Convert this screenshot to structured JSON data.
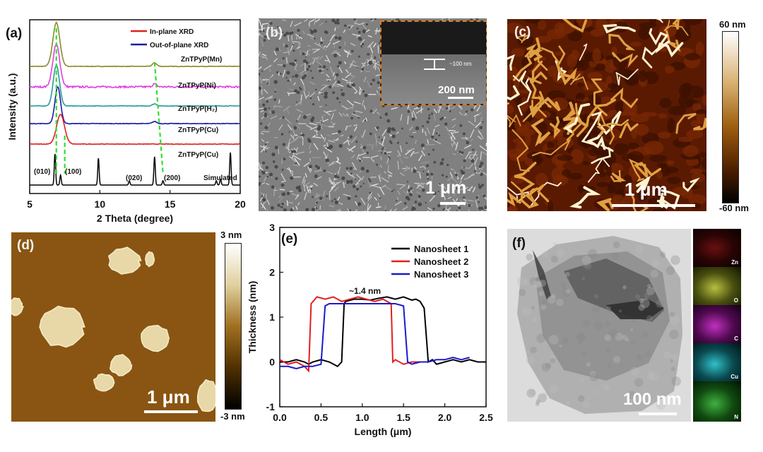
{
  "panels": {
    "a": {
      "label": "(a)",
      "ylabel": "Intensity (a.u.)",
      "xlabel": "2 Theta (degree)",
      "legend": [
        "In-plane XRD",
        "Out-of-plane XRD"
      ],
      "traces": [
        "ZnTPyP(Mn)",
        "ZnTPyP(Ni)",
        "ZnTPyP(H₂)",
        "ZnTPyP(Cu)",
        "ZnTPyP(Cu)",
        "Simulated"
      ],
      "peaks": [
        "(010)",
        "(100)",
        "(020)",
        "(200)"
      ],
      "xticks": [
        "5",
        "10",
        "15",
        "20"
      ]
    },
    "b": {
      "label": "(b)",
      "scale": "1 μm",
      "inset_scale": "200 nm",
      "inset_thickness": "~100 nm"
    },
    "c": {
      "label": "(c)",
      "scale": "1 μm",
      "cbar_max": "60 nm",
      "cbar_min": "-60 nm"
    },
    "d": {
      "label": "(d)",
      "scale": "1 μm",
      "cbar_max": "3 nm",
      "cbar_min": "-3 nm"
    },
    "e": {
      "label": "(e)",
      "ylabel": "Thickness (nm)",
      "xlabel": "Length (μm)",
      "annotation": "~1.4 nm",
      "xticks": [
        "0.0",
        "0.5",
        "1.0",
        "1.5",
        "2.0",
        "2.5"
      ],
      "yticks": [
        "-1",
        "0",
        "1",
        "2",
        "3"
      ]
    },
    "f": {
      "label": "(f)",
      "scale": "100 nm",
      "edx": [
        "Zn",
        "O",
        "C",
        "Cu",
        "N"
      ]
    }
  },
  "colors": {
    "mn": "#8a8a2a",
    "ni": "#e040e0",
    "h2": "#2a9a9a",
    "cu_out": "#1a1aa8",
    "cu_in": "#e02020",
    "sim": "#000000",
    "guide": "#33dd33",
    "ns1": "#000000",
    "ns2": "#e02020",
    "ns3": "#1a1acc"
  },
  "chart_data": [
    {
      "type": "line",
      "xlabel": "2 Theta (degree)",
      "ylabel": "Intensity (a.u.)",
      "xlim": [
        5,
        20
      ],
      "series": [
        {
          "name": "ZnTPyP(Mn)",
          "peaks_x": [
            6.9,
            13.9
          ]
        },
        {
          "name": "ZnTPyP(Ni)",
          "peaks_x": [
            6.9,
            13.9
          ]
        },
        {
          "name": "ZnTPyP(H₂)",
          "peaks_x": [
            6.9,
            13.9
          ]
        },
        {
          "name": "ZnTPyP(Cu)",
          "peaks_x": [
            6.9,
            13.9
          ]
        },
        {
          "name": "ZnTPyP(Cu)",
          "peaks_x": [
            7.2
          ]
        },
        {
          "name": "Simulated",
          "peaks_x": [
            6.8,
            7.2,
            9.9,
            12.1,
            13.9,
            14.5,
            18.3,
            19.3
          ]
        }
      ],
      "legend": [
        "In-plane XRD",
        "Out-of-plane XRD"
      ]
    },
    {
      "type": "line",
      "xlabel": "Length (μm)",
      "ylabel": "Thickness (nm)",
      "xlim": [
        0,
        2.5
      ],
      "ylim": [
        -1,
        3
      ],
      "series": [
        {
          "name": "Nanosheet 1",
          "x": [
            0,
            0.1,
            0.2,
            0.3,
            0.35,
            0.4,
            0.5,
            0.6,
            0.7,
            0.75,
            0.78,
            0.8,
            0.9,
            1.0,
            1.1,
            1.2,
            1.3,
            1.4,
            1.5,
            1.6,
            1.65,
            1.7,
            1.75,
            1.8,
            1.85,
            1.9,
            2.0,
            2.1,
            2.2,
            2.3,
            2.4,
            2.5
          ],
          "y": [
            0,
            0,
            0.05,
            0,
            -0.05,
            0,
            0.05,
            0,
            -0.1,
            0,
            1.3,
            1.35,
            1.4,
            1.4,
            1.38,
            1.42,
            1.45,
            1.4,
            1.45,
            1.38,
            1.4,
            1.35,
            1.2,
            0,
            0.05,
            -0.05,
            0,
            0.05,
            0,
            0.05,
            0,
            0
          ]
        },
        {
          "name": "Nanosheet 2",
          "x": [
            0,
            0.1,
            0.2,
            0.3,
            0.35,
            0.38,
            0.45,
            0.55,
            0.65,
            0.75,
            0.85,
            0.95,
            1.05,
            1.15,
            1.25,
            1.35,
            1.37,
            1.4,
            1.5,
            1.6,
            1.7
          ],
          "y": [
            0.05,
            -0.05,
            0,
            -0.1,
            -0.2,
            1.3,
            1.45,
            1.4,
            1.45,
            1.35,
            1.4,
            1.45,
            1.4,
            1.35,
            1.4,
            1.3,
            0,
            0.05,
            -0.05,
            0,
            0
          ]
        },
        {
          "name": "Nanosheet 3",
          "x": [
            0,
            0.1,
            0.2,
            0.3,
            0.4,
            0.5,
            0.55,
            0.6,
            0.7,
            0.8,
            0.9,
            1.0,
            1.1,
            1.2,
            1.3,
            1.4,
            1.5,
            1.55,
            1.6,
            1.7,
            1.8,
            1.9,
            2.0,
            2.1,
            2.2,
            2.3
          ],
          "y": [
            -0.1,
            -0.1,
            -0.15,
            -0.1,
            -0.1,
            -0.05,
            1.25,
            1.3,
            1.3,
            1.3,
            1.3,
            1.3,
            1.3,
            1.3,
            1.3,
            1.3,
            1.25,
            0,
            -0.05,
            0,
            0,
            0.05,
            0.05,
            0.1,
            0.05,
            0.1
          ]
        }
      ]
    }
  ]
}
